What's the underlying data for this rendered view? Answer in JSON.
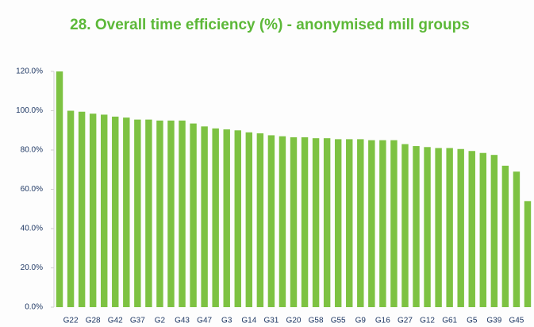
{
  "chart_data": {
    "type": "bar",
    "title": "28. Overall time efficiency (%) - anonymised mill groups",
    "categories": [
      null,
      "G22",
      null,
      "G28",
      null,
      "G42",
      null,
      "G37",
      null,
      "G2",
      null,
      "G43",
      null,
      "G47",
      null,
      "G3",
      null,
      "G14",
      null,
      "G31",
      null,
      "G20",
      null,
      "G58",
      null,
      "G55",
      null,
      "G9",
      null,
      "G16",
      null,
      "G27",
      null,
      "G12",
      null,
      "G61",
      null,
      "G5",
      null,
      "G39",
      null,
      "G45",
      null
    ],
    "values": [
      120,
      100,
      99.5,
      98.5,
      98,
      97,
      96.5,
      95.5,
      95.5,
      95,
      95,
      95,
      93.5,
      92,
      91,
      90.5,
      90,
      89,
      88.5,
      87.5,
      87,
      86.5,
      86.5,
      86,
      86,
      85.5,
      85.5,
      85.5,
      85,
      85,
      85,
      83,
      82,
      81.5,
      81,
      81,
      80.5,
      79.5,
      78.5,
      77.5,
      72,
      69,
      54
    ],
    "color": "#7dc242",
    "ylim": [
      0,
      120
    ],
    "yticks": [
      {
        "value": 0,
        "label": "0.0%"
      },
      {
        "value": 20,
        "label": "20.0%"
      },
      {
        "value": 40,
        "label": "40.0%"
      },
      {
        "value": 60,
        "label": "60.0%"
      },
      {
        "value": 80,
        "label": "80.0%"
      },
      {
        "value": 100,
        "label": "100.0%"
      },
      {
        "value": 120,
        "label": "120.0%"
      }
    ],
    "grid": false
  }
}
